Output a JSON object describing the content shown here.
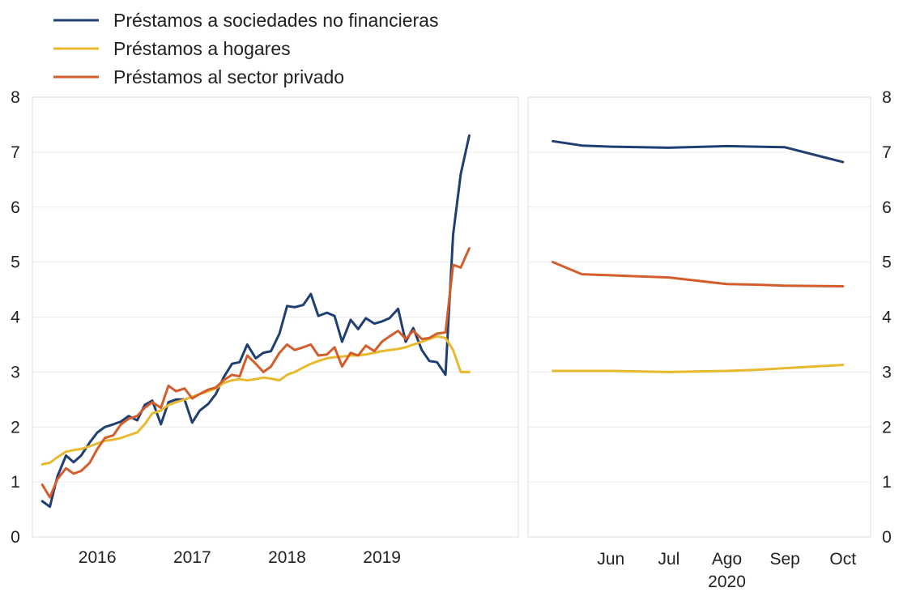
{
  "chart_data": {
    "type": "line",
    "legend": {
      "placement": "top-left",
      "entries": [
        {
          "key": "nfc",
          "label": "Préstamos a sociedades no financieras",
          "color": "#1f3f73"
        },
        {
          "key": "hh",
          "label": "Préstamos a hogares",
          "color": "#e8b92f"
        },
        {
          "key": "priv",
          "label": "Préstamos al sector privado",
          "color": "#d45d2c"
        }
      ]
    },
    "y_ticks": [
      "0",
      "1",
      "2",
      "3",
      "4",
      "5",
      "6",
      "7",
      "8"
    ],
    "ylim": [
      0,
      8
    ],
    "grid": true,
    "panels": [
      {
        "id": "left",
        "x_unit": "year",
        "xlim": [
          2015.35,
          2020.42
        ],
        "x_ticks": [
          {
            "x": 2016.0,
            "label": "2016"
          },
          {
            "x": 2017.0,
            "label": "2017"
          },
          {
            "x": 2018.0,
            "label": "2018"
          },
          {
            "x": 2019.0,
            "label": "2019"
          }
        ],
        "series": [
          {
            "key": "nfc",
            "points": [
              [
                2015.42,
                0.65
              ],
              [
                2015.5,
                0.55
              ],
              [
                2015.58,
                1.1
              ],
              [
                2015.67,
                1.48
              ],
              [
                2015.75,
                1.36
              ],
              [
                2015.83,
                1.48
              ],
              [
                2015.92,
                1.72
              ],
              [
                2016.0,
                1.9
              ],
              [
                2016.08,
                2.0
              ],
              [
                2016.17,
                2.05
              ],
              [
                2016.25,
                2.1
              ],
              [
                2016.33,
                2.2
              ],
              [
                2016.42,
                2.12
              ],
              [
                2016.5,
                2.4
              ],
              [
                2016.58,
                2.48
              ],
              [
                2016.67,
                2.05
              ],
              [
                2016.75,
                2.45
              ],
              [
                2016.83,
                2.5
              ],
              [
                2016.92,
                2.5
              ],
              [
                2017.0,
                2.08
              ],
              [
                2017.08,
                2.3
              ],
              [
                2017.17,
                2.42
              ],
              [
                2017.25,
                2.6
              ],
              [
                2017.33,
                2.9
              ],
              [
                2017.42,
                3.15
              ],
              [
                2017.5,
                3.18
              ],
              [
                2017.58,
                3.5
              ],
              [
                2017.67,
                3.25
              ],
              [
                2017.75,
                3.35
              ],
              [
                2017.83,
                3.38
              ],
              [
                2017.92,
                3.7
              ],
              [
                2018.0,
                4.2
              ],
              [
                2018.08,
                4.18
              ],
              [
                2018.17,
                4.22
              ],
              [
                2018.25,
                4.42
              ],
              [
                2018.33,
                4.02
              ],
              [
                2018.42,
                4.08
              ],
              [
                2018.5,
                4.02
              ],
              [
                2018.58,
                3.55
              ],
              [
                2018.67,
                3.95
              ],
              [
                2018.75,
                3.78
              ],
              [
                2018.83,
                3.98
              ],
              [
                2018.92,
                3.88
              ],
              [
                2019.0,
                3.92
              ],
              [
                2019.08,
                3.98
              ],
              [
                2019.17,
                4.15
              ],
              [
                2019.25,
                3.55
              ],
              [
                2019.33,
                3.8
              ],
              [
                2019.42,
                3.4
              ],
              [
                2019.5,
                3.2
              ],
              [
                2019.58,
                3.18
              ],
              [
                2019.67,
                2.95
              ],
              [
                2019.75,
                5.5
              ],
              [
                2019.83,
                6.6
              ],
              [
                2019.92,
                7.3
              ]
            ]
          },
          {
            "key": "hh",
            "points": [
              [
                2015.42,
                1.32
              ],
              [
                2015.5,
                1.35
              ],
              [
                2015.58,
                1.45
              ],
              [
                2015.67,
                1.55
              ],
              [
                2015.75,
                1.58
              ],
              [
                2015.83,
                1.6
              ],
              [
                2015.92,
                1.65
              ],
              [
                2016.0,
                1.7
              ],
              [
                2016.08,
                1.75
              ],
              [
                2016.17,
                1.77
              ],
              [
                2016.25,
                1.8
              ],
              [
                2016.33,
                1.85
              ],
              [
                2016.42,
                1.9
              ],
              [
                2016.5,
                2.05
              ],
              [
                2016.58,
                2.25
              ],
              [
                2016.67,
                2.3
              ],
              [
                2016.75,
                2.4
              ],
              [
                2016.83,
                2.45
              ],
              [
                2016.92,
                2.5
              ],
              [
                2017.0,
                2.55
              ],
              [
                2017.08,
                2.6
              ],
              [
                2017.17,
                2.65
              ],
              [
                2017.25,
                2.7
              ],
              [
                2017.33,
                2.8
              ],
              [
                2017.42,
                2.85
              ],
              [
                2017.5,
                2.87
              ],
              [
                2017.58,
                2.85
              ],
              [
                2017.67,
                2.87
              ],
              [
                2017.75,
                2.9
              ],
              [
                2017.83,
                2.88
              ],
              [
                2017.92,
                2.85
              ],
              [
                2018.0,
                2.95
              ],
              [
                2018.08,
                3.0
              ],
              [
                2018.17,
                3.08
              ],
              [
                2018.25,
                3.15
              ],
              [
                2018.33,
                3.2
              ],
              [
                2018.42,
                3.25
              ],
              [
                2018.5,
                3.27
              ],
              [
                2018.58,
                3.28
              ],
              [
                2018.67,
                3.3
              ],
              [
                2018.75,
                3.3
              ],
              [
                2018.83,
                3.32
              ],
              [
                2018.92,
                3.35
              ],
              [
                2019.0,
                3.38
              ],
              [
                2019.08,
                3.4
              ],
              [
                2019.17,
                3.42
              ],
              [
                2019.25,
                3.45
              ],
              [
                2019.33,
                3.5
              ],
              [
                2019.42,
                3.55
              ],
              [
                2019.5,
                3.6
              ],
              [
                2019.58,
                3.65
              ],
              [
                2019.67,
                3.62
              ],
              [
                2019.75,
                3.4
              ],
              [
                2019.83,
                3.0
              ],
              [
                2019.92,
                3.0
              ]
            ]
          },
          {
            "key": "priv",
            "points": [
              [
                2015.42,
                0.95
              ],
              [
                2015.5,
                0.72
              ],
              [
                2015.58,
                1.05
              ],
              [
                2015.67,
                1.25
              ],
              [
                2015.75,
                1.15
              ],
              [
                2015.83,
                1.2
              ],
              [
                2015.92,
                1.35
              ],
              [
                2016.0,
                1.6
              ],
              [
                2016.08,
                1.8
              ],
              [
                2016.17,
                1.85
              ],
              [
                2016.25,
                2.05
              ],
              [
                2016.33,
                2.15
              ],
              [
                2016.42,
                2.2
              ],
              [
                2016.5,
                2.35
              ],
              [
                2016.58,
                2.45
              ],
              [
                2016.67,
                2.35
              ],
              [
                2016.75,
                2.75
              ],
              [
                2016.83,
                2.65
              ],
              [
                2016.92,
                2.7
              ],
              [
                2017.0,
                2.52
              ],
              [
                2017.08,
                2.6
              ],
              [
                2017.17,
                2.68
              ],
              [
                2017.25,
                2.72
              ],
              [
                2017.33,
                2.85
              ],
              [
                2017.42,
                2.95
              ],
              [
                2017.5,
                2.92
              ],
              [
                2017.58,
                3.3
              ],
              [
                2017.67,
                3.15
              ],
              [
                2017.75,
                3.0
              ],
              [
                2017.83,
                3.1
              ],
              [
                2017.92,
                3.35
              ],
              [
                2018.0,
                3.5
              ],
              [
                2018.08,
                3.4
              ],
              [
                2018.17,
                3.45
              ],
              [
                2018.25,
                3.5
              ],
              [
                2018.33,
                3.3
              ],
              [
                2018.42,
                3.32
              ],
              [
                2018.5,
                3.45
              ],
              [
                2018.58,
                3.1
              ],
              [
                2018.67,
                3.35
              ],
              [
                2018.75,
                3.3
              ],
              [
                2018.83,
                3.48
              ],
              [
                2018.92,
                3.38
              ],
              [
                2019.0,
                3.55
              ],
              [
                2019.08,
                3.65
              ],
              [
                2019.17,
                3.75
              ],
              [
                2019.25,
                3.6
              ],
              [
                2019.33,
                3.75
              ],
              [
                2019.42,
                3.6
              ],
              [
                2019.5,
                3.62
              ],
              [
                2019.58,
                3.7
              ],
              [
                2019.67,
                3.72
              ],
              [
                2019.75,
                4.95
              ],
              [
                2019.83,
                4.9
              ],
              [
                2019.92,
                5.25
              ]
            ]
          }
        ]
      },
      {
        "id": "right",
        "x_unit": "month (2020)",
        "xlim": [
          4.6,
          10.45
        ],
        "x_ticks": [
          {
            "x": 6,
            "label": "Jun"
          },
          {
            "x": 7,
            "label": "Jul"
          },
          {
            "x": 8,
            "label": "Ago"
          },
          {
            "x": 9,
            "label": "Sep"
          },
          {
            "x": 10,
            "label": "Oct"
          }
        ],
        "year_label": "2020",
        "series": [
          {
            "key": "nfc",
            "points": [
              [
                5.0,
                7.2
              ],
              [
                5.5,
                7.12
              ],
              [
                6.0,
                7.1
              ],
              [
                7.0,
                7.08
              ],
              [
                8.0,
                7.11
              ],
              [
                8.5,
                7.1
              ],
              [
                9.0,
                7.09
              ],
              [
                10.0,
                6.82
              ]
            ]
          },
          {
            "key": "hh",
            "points": [
              [
                5.0,
                3.02
              ],
              [
                5.5,
                3.02
              ],
              [
                6.0,
                3.02
              ],
              [
                7.0,
                3.0
              ],
              [
                8.0,
                3.02
              ],
              [
                8.5,
                3.04
              ],
              [
                9.0,
                3.07
              ],
              [
                10.0,
                3.13
              ]
            ]
          },
          {
            "key": "priv",
            "points": [
              [
                5.0,
                5.0
              ],
              [
                5.5,
                4.78
              ],
              [
                6.0,
                4.76
              ],
              [
                7.0,
                4.72
              ],
              [
                8.0,
                4.6
              ],
              [
                8.5,
                4.59
              ],
              [
                9.0,
                4.57
              ],
              [
                10.0,
                4.56
              ]
            ]
          }
        ]
      }
    ]
  }
}
